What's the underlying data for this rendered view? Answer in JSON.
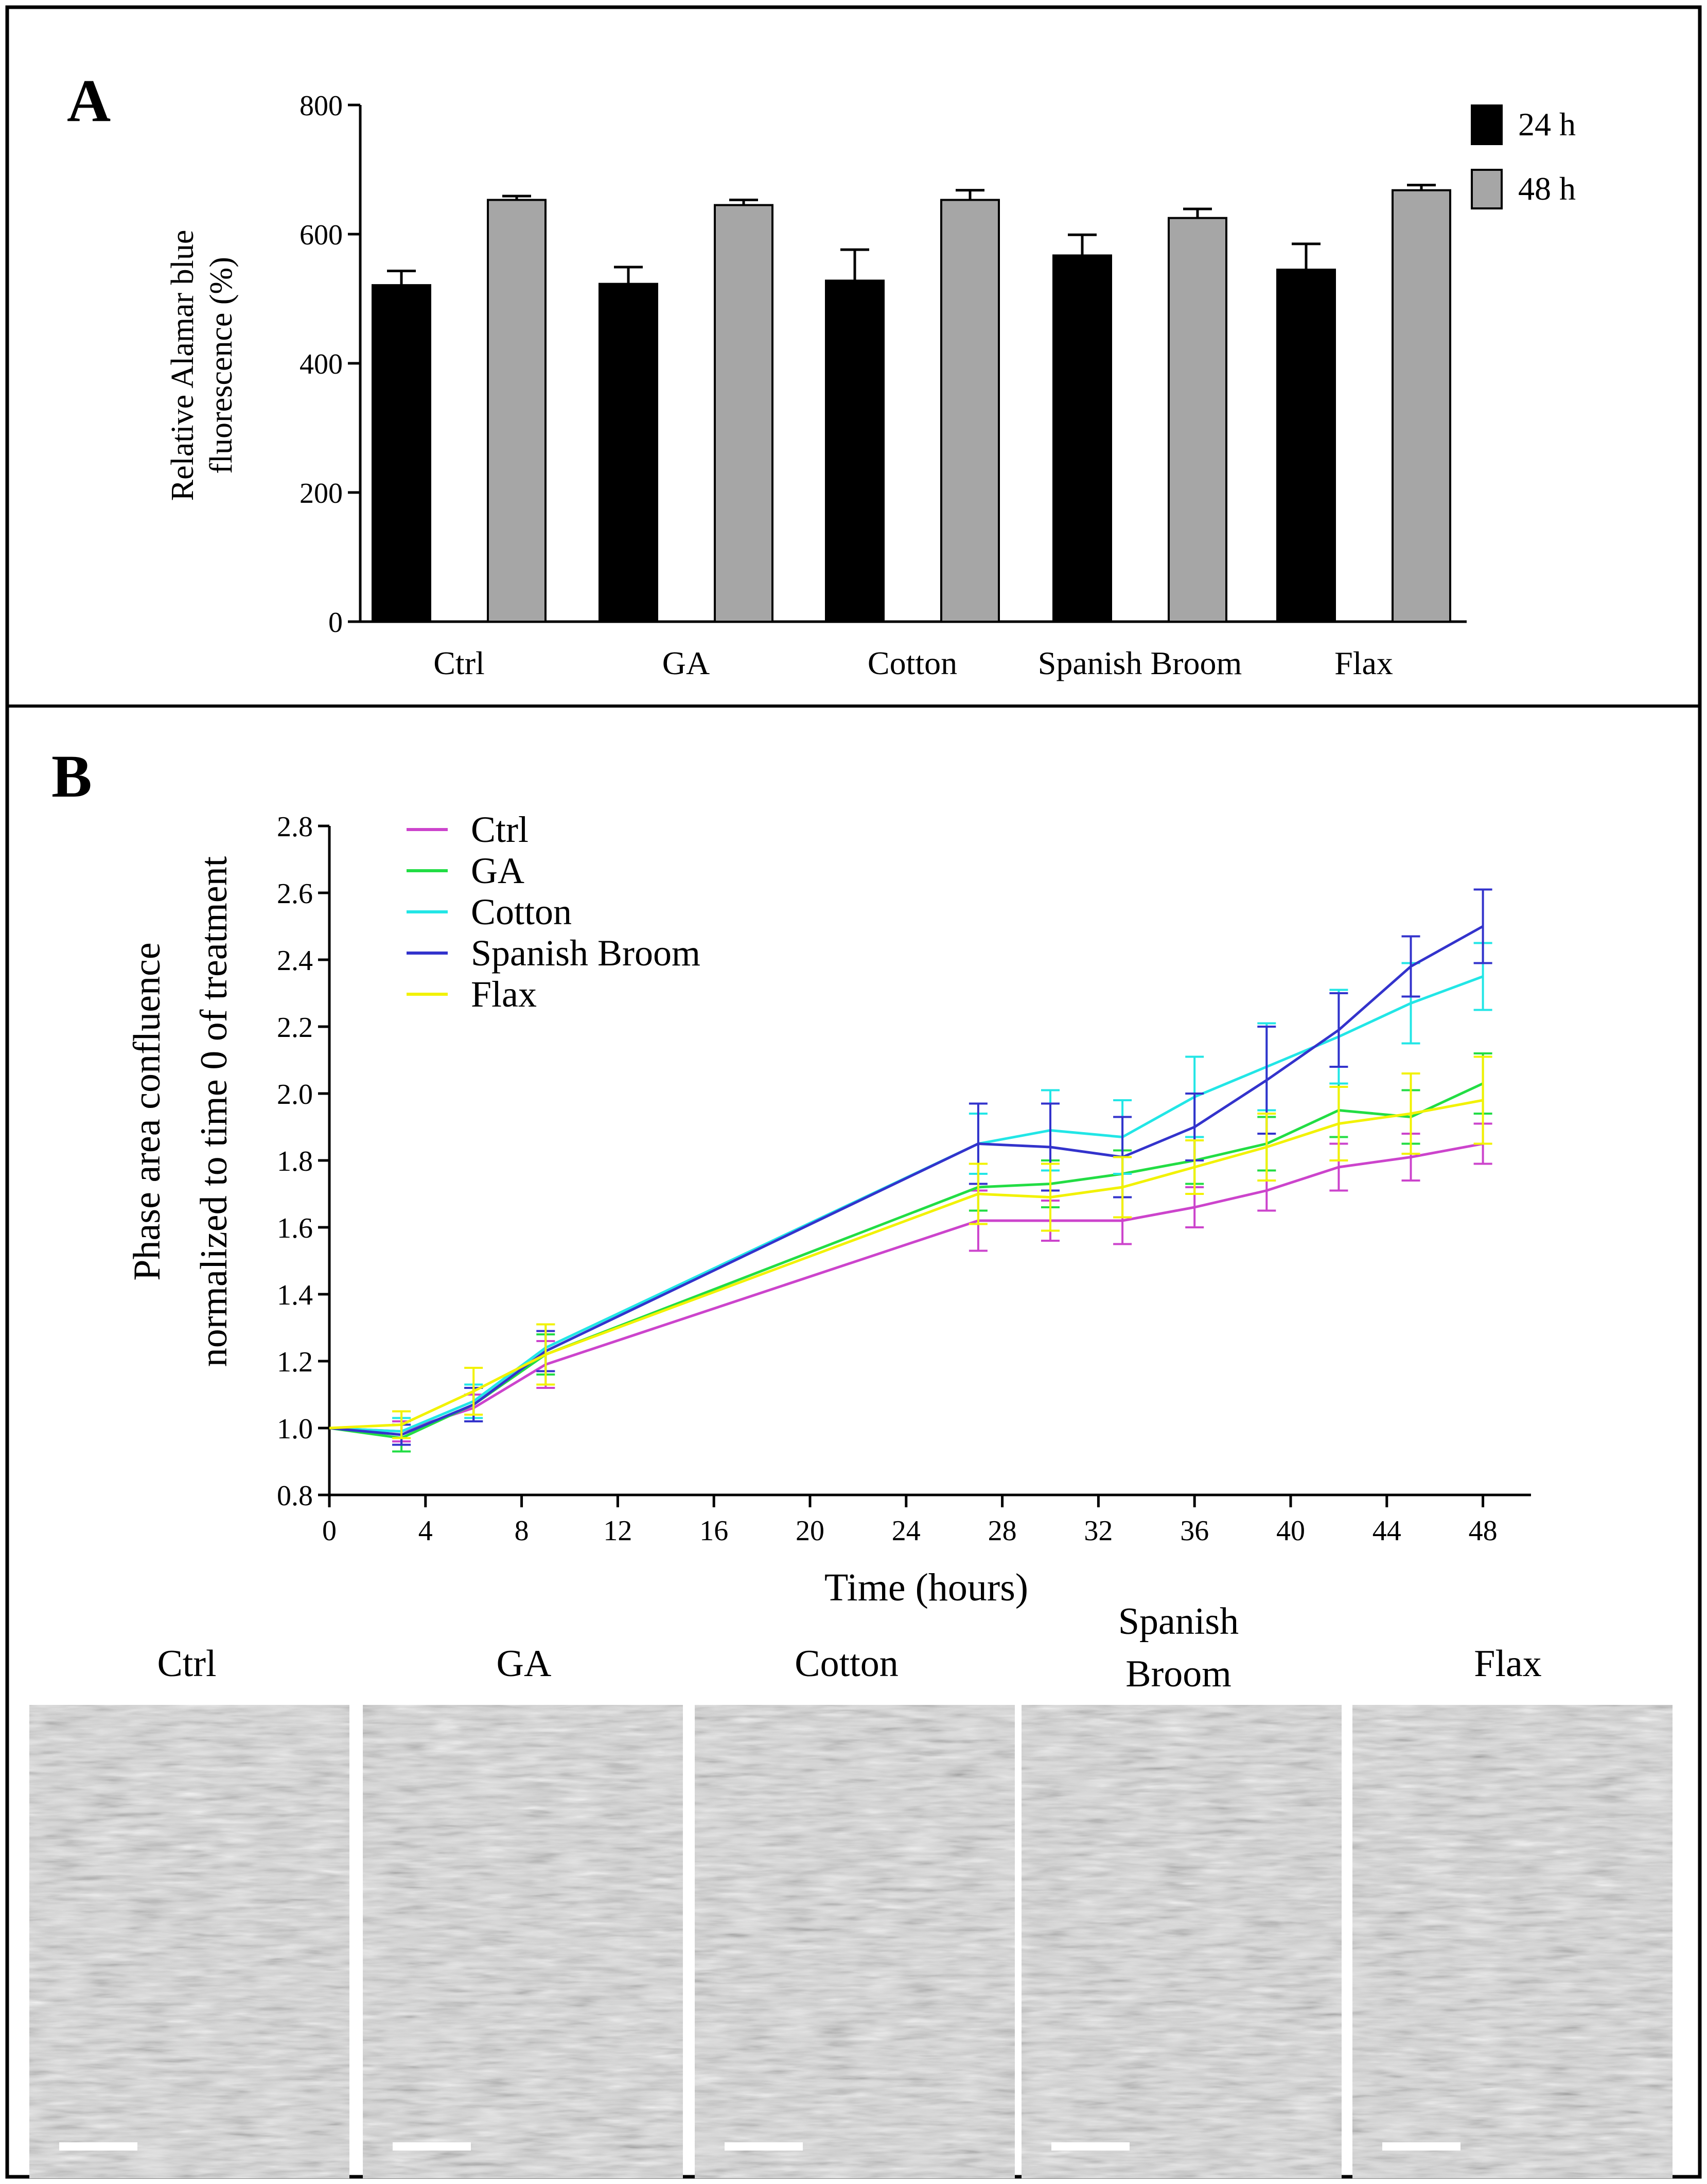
{
  "panels": {
    "a_label": "A",
    "b_label": "B"
  },
  "colors": {
    "bar_24h": "#000000",
    "bar_48h": "#a6a6a6",
    "ctrl": "#cc44cc",
    "ga": "#22dd44",
    "cotton": "#22e6e6",
    "spanish_broom": "#3333cc",
    "flax": "#f2f200",
    "scale_bar": "#ffffff"
  },
  "chart_data": [
    {
      "type": "bar",
      "ylabel_line1": "Relative Alamar blue",
      "ylabel_line2": "fluorescence (%)",
      "xlabel": "",
      "ylim": [
        0,
        800
      ],
      "yticks": [
        0,
        200,
        400,
        600,
        800
      ],
      "categories": [
        "Ctrl",
        "GA",
        "Cotton",
        "Spanish Broom",
        "Flax"
      ],
      "legend_position": "top-right",
      "series": [
        {
          "name": "24 h",
          "values": [
            521,
            523,
            528,
            567,
            545
          ],
          "errors": [
            22,
            26,
            48,
            32,
            40
          ]
        },
        {
          "name": "48 h",
          "values": [
            653,
            645,
            653,
            625,
            668
          ],
          "errors": [
            6,
            8,
            15,
            14,
            8
          ]
        }
      ]
    },
    {
      "type": "line",
      "ylabel_line1": "Phase area confluence",
      "ylabel_line2": "normalized to time 0 of treatment",
      "xlabel": "Time (hours)",
      "xlim": [
        0,
        50
      ],
      "ylim": [
        0.8,
        2.8
      ],
      "xticks": [
        0,
        4,
        8,
        12,
        16,
        20,
        24,
        28,
        32,
        36,
        40,
        44,
        48
      ],
      "yticks": [
        "0.8",
        "1.0",
        "1.2",
        "1.4",
        "1.6",
        "1.8",
        "2.0",
        "2.2",
        "2.4",
        "2.6",
        "2.8"
      ],
      "legend_position": "top-left",
      "x": [
        0,
        3,
        6,
        9,
        27,
        30,
        33,
        36,
        39,
        42,
        45,
        48
      ],
      "series": [
        {
          "name": "Ctrl",
          "color_key": "ctrl",
          "values": [
            1.0,
            0.99,
            1.06,
            1.19,
            1.62,
            1.62,
            1.62,
            1.66,
            1.71,
            1.78,
            1.81,
            1.85
          ],
          "errors": [
            0,
            0.03,
            0.04,
            0.07,
            0.09,
            0.06,
            0.07,
            0.06,
            0.06,
            0.07,
            0.07,
            0.06
          ]
        },
        {
          "name": "GA",
          "color_key": "ga",
          "values": [
            1.0,
            0.97,
            1.07,
            1.22,
            1.72,
            1.73,
            1.76,
            1.8,
            1.85,
            1.95,
            1.93,
            2.03
          ],
          "errors": [
            0,
            0.04,
            0.05,
            0.06,
            0.07,
            0.07,
            0.07,
            0.07,
            0.08,
            0.08,
            0.08,
            0.09
          ]
        },
        {
          "name": "Cotton",
          "color_key": "cotton",
          "values": [
            1.0,
            0.99,
            1.08,
            1.24,
            1.85,
            1.89,
            1.87,
            1.99,
            2.08,
            2.17,
            2.27,
            2.35
          ],
          "errors": [
            0,
            0.04,
            0.05,
            0.07,
            0.09,
            0.12,
            0.11,
            0.12,
            0.13,
            0.14,
            0.12,
            0.1
          ]
        },
        {
          "name": "Spanish Broom",
          "color_key": "spanish_broom",
          "values": [
            1.0,
            0.98,
            1.07,
            1.23,
            1.85,
            1.84,
            1.81,
            1.9,
            2.04,
            2.19,
            2.38,
            2.5
          ],
          "errors": [
            0,
            0.03,
            0.05,
            0.06,
            0.12,
            0.13,
            0.12,
            0.1,
            0.16,
            0.11,
            0.09,
            0.11
          ]
        },
        {
          "name": "Flax",
          "color_key": "flax",
          "values": [
            1.0,
            1.01,
            1.11,
            1.22,
            1.7,
            1.69,
            1.72,
            1.78,
            1.84,
            1.91,
            1.94,
            1.98
          ],
          "errors": [
            0,
            0.04,
            0.07,
            0.09,
            0.09,
            0.1,
            0.09,
            0.08,
            0.1,
            0.11,
            0.12,
            0.13
          ]
        }
      ]
    }
  ],
  "micrographs": {
    "labels": [
      {
        "line1": "Ctrl",
        "line2": ""
      },
      {
        "line1": "GA",
        "line2": ""
      },
      {
        "line1": "Cotton",
        "line2": ""
      },
      {
        "line1": "Spanish",
        "line2": "Broom"
      },
      {
        "line1": "Flax",
        "line2": ""
      }
    ]
  }
}
